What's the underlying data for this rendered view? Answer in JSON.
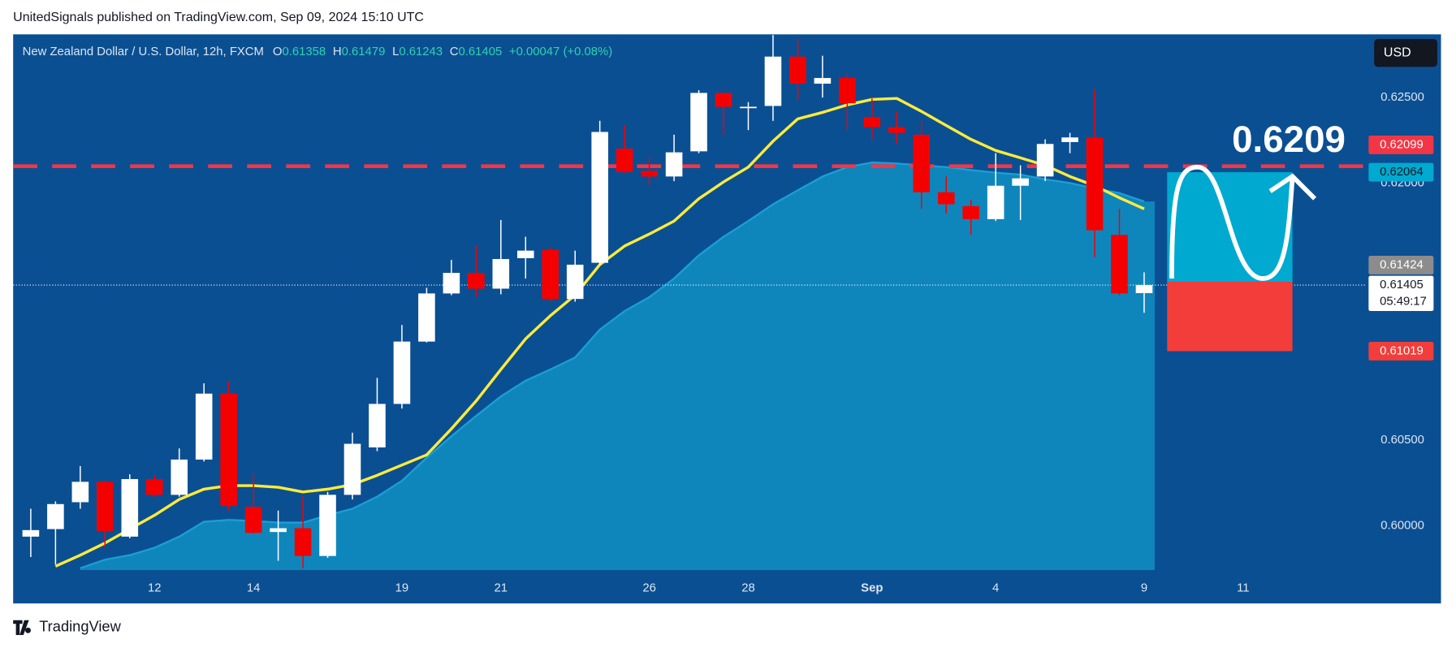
{
  "header": {
    "title": "UnitedSignals published on TradingView.com, Sep 09, 2024 15:10 UTC"
  },
  "footer": {
    "brand": "TradingView"
  },
  "chart_data": {
    "type": "candlestick",
    "title": "New Zealand Dollar / U.S. Dollar, 12h, FXCM",
    "legend": {
      "o_label": "O",
      "h_label": "H",
      "l_label": "L",
      "c_label": "C",
      "change": "+0.00047 (+0.08%)"
    },
    "currency": "USD",
    "categories": [
      null,
      null,
      null,
      null,
      null,
      "12",
      null,
      null,
      null,
      "14",
      null,
      null,
      null,
      null,
      null,
      "19",
      null,
      null,
      null,
      "21",
      null,
      null,
      null,
      null,
      null,
      "26",
      null,
      null,
      null,
      "28",
      null,
      null,
      null,
      null,
      "Sep",
      null,
      null,
      null,
      null,
      "4",
      null,
      null,
      null,
      null,
      null,
      "9",
      null,
      null,
      null,
      "11"
    ],
    "open": [
      0.59936,
      0.5998,
      0.60137,
      0.60256,
      0.59936,
      0.60272,
      0.6018,
      0.60386,
      0.60771,
      0.6011,
      0.59963,
      0.59985,
      0.59823,
      0.6018,
      0.60457,
      0.60711,
      0.61075,
      0.61356,
      0.61476,
      0.61384,
      0.61562,
      0.61611,
      0.61324,
      0.61535,
      0.62202,
      0.62072,
      0.62039,
      0.62186,
      0.62527,
      0.6244,
      0.62451,
      0.62739,
      0.62581,
      0.62614,
      0.62386,
      0.62327,
      0.62283,
      0.61947,
      0.61866,
      0.6179,
      0.61985,
      0.62039,
      0.6224,
      0.62267,
      0.61698,
      0.61358,
      null,
      null,
      null,
      null
    ],
    "high": [
      0.60099,
      0.60142,
      0.60348,
      0.60262,
      0.603,
      0.60294,
      0.60451,
      0.60831,
      0.60842,
      0.60305,
      0.60088,
      0.60169,
      0.60197,
      0.60543,
      0.60863,
      0.61172,
      0.61389,
      0.61552,
      0.61633,
      0.61785,
      0.61687,
      0.61622,
      0.61606,
      0.62364,
      0.62337,
      0.62148,
      0.62283,
      0.62543,
      0.6253,
      0.62473,
      0.62865,
      0.62842,
      0.62744,
      0.62636,
      0.62495,
      0.62419,
      0.62364,
      0.62039,
      0.61904,
      0.62175,
      0.62104,
      0.62256,
      0.62294,
      0.62549,
      0.6185,
      0.61479,
      null,
      null,
      null,
      null
    ],
    "low": [
      0.59817,
      0.59774,
      0.60099,
      0.59871,
      0.59926,
      0.60169,
      0.60169,
      0.60375,
      0.60088,
      0.59953,
      0.59795,
      0.59752,
      0.59812,
      0.60153,
      0.60435,
      0.60684,
      0.6107,
      0.61346,
      0.61335,
      0.61351,
      0.61443,
      0.61313,
      0.61308,
      0.61524,
      0.6206,
      0.61985,
      0.62012,
      0.62175,
      0.62283,
      0.6231,
      0.62364,
      0.62484,
      0.625,
      0.6231,
      0.62256,
      0.62229,
      0.6185,
      0.61823,
      0.61698,
      0.61779,
      0.61785,
      0.62012,
      0.62175,
      0.61568,
      0.61346,
      0.61243,
      null,
      null,
      null,
      null
    ],
    "close": [
      0.59974,
      0.60126,
      0.60256,
      0.59969,
      0.60272,
      0.6018,
      0.60386,
      0.60771,
      0.60115,
      0.59958,
      0.59985,
      0.59823,
      0.6018,
      0.60478,
      0.60711,
      0.61075,
      0.61356,
      0.61476,
      0.61384,
      0.61557,
      0.61606,
      0.61324,
      0.61524,
      0.62299,
      0.62066,
      0.62039,
      0.6218,
      0.62527,
      0.62446,
      0.62446,
      0.62739,
      0.62581,
      0.62614,
      0.62467,
      0.62327,
      0.62294,
      0.61947,
      0.61877,
      0.6179,
      0.61985,
      0.62028,
      0.62229,
      0.62267,
      0.61725,
      0.61356,
      0.61405,
      null,
      null,
      null,
      null
    ],
    "up_color": "#ffffff",
    "down_color": "#f50000",
    "indicators": [
      {
        "color": "#1a9fd6",
        "fill": "#0f86bb",
        "values": [
          null,
          null,
          0.59752,
          0.59801,
          0.59828,
          0.59871,
          0.59936,
          0.60023,
          0.60034,
          0.60028,
          0.60018,
          0.60018,
          0.60061,
          0.60099,
          0.60169,
          0.60262,
          0.60397,
          0.60522,
          0.60641,
          0.60755,
          0.60847,
          0.60912,
          0.60982,
          0.61145,
          0.61253,
          0.61335,
          0.61443,
          0.61579,
          0.61687,
          0.61779,
          0.61877,
          0.61958,
          0.62039,
          0.62094,
          0.62121,
          0.62115,
          0.62104,
          0.62094,
          0.62077,
          0.62061,
          0.6205,
          0.62023,
          0.62001,
          0.61969,
          0.61942,
          0.61893,
          null,
          null,
          null,
          null
        ]
      },
      {
        "color": "#ffeb3b",
        "values": [
          null,
          0.59763,
          0.59828,
          0.59898,
          0.5998,
          0.60061,
          0.60153,
          0.60213,
          0.60234,
          0.60234,
          0.60224,
          0.60197,
          0.60213,
          0.6024,
          0.60294,
          0.60354,
          0.60413,
          0.60565,
          0.60728,
          0.60912,
          0.61091,
          0.61226,
          0.61346,
          0.61524,
          0.61633,
          0.61703,
          0.61779,
          0.61909,
          0.62007,
          0.62094,
          0.62245,
          0.62375,
          0.62413,
          0.62457,
          0.62489,
          0.62495,
          0.62419,
          0.62337,
          0.62256,
          0.62191,
          0.62148,
          0.62104,
          0.62039,
          0.61985,
          0.61915,
          0.6185,
          null,
          null,
          null,
          null
        ]
      }
    ],
    "resistance": {
      "value": 0.62099,
      "color": "#f23645"
    },
    "position": {
      "entry": 0.61424,
      "target": 0.62064,
      "stop": 0.61019,
      "target_color": "#00a9cf",
      "stop_color": "#f23d3a"
    },
    "countdown": "05:49:17",
    "annotation": "0.6209",
    "ylim": [
      0.59741,
      0.62869
    ],
    "yticks": [
      {
        "value": 0.6,
        "label": "0.60000"
      },
      {
        "value": 0.605,
        "label": "0.60500"
      },
      {
        "value": 0.62,
        "label": "0.62000"
      },
      {
        "value": 0.625,
        "label": "0.62500"
      }
    ]
  }
}
